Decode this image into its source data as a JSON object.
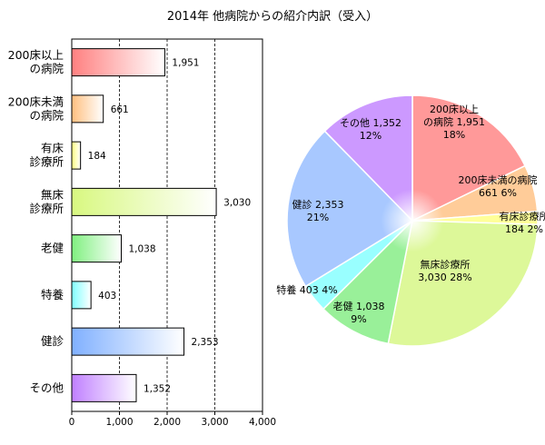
{
  "chart_data": [
    {
      "type": "bar",
      "orientation": "horizontal",
      "title": "2014年 他病院からの紹介内訳（受入）",
      "categories": [
        [
          "200床以上",
          "の病院"
        ],
        [
          "200床未満",
          "の病院"
        ],
        [
          "有床",
          "診療所"
        ],
        [
          "無床",
          "診療所"
        ],
        [
          "老健"
        ],
        [
          "特養"
        ],
        [
          "健診"
        ],
        [
          "その他"
        ]
      ],
      "values": [
        1951,
        661,
        184,
        3030,
        1038,
        403,
        2353,
        1352
      ],
      "value_labels": [
        "1,951",
        "661",
        "184",
        "3,030",
        "1,038",
        "403",
        "2,353",
        "1,352"
      ],
      "xlim": [
        0,
        4000
      ],
      "xticks": [
        0,
        1000,
        2000,
        3000,
        4000
      ],
      "xtick_labels": [
        "0",
        "1,000",
        "2,000",
        "3,000",
        "4,000"
      ],
      "grid": true,
      "colors": [
        "#ff8080",
        "#ffc080",
        "#ffff80",
        "#d8f880",
        "#80f080",
        "#80ffff",
        "#80b0ff",
        "#c080ff"
      ]
    },
    {
      "type": "pie",
      "slices": [
        {
          "label": "200床以上の病院",
          "value": 1951,
          "value_label": "1,951",
          "percent": "18%",
          "color": "#ff9999"
        },
        {
          "label": "200床未満の病院",
          "value": 661,
          "value_label": "661",
          "percent": "6%",
          "color": "#ffcc99"
        },
        {
          "label": "有床診療所",
          "value": 184,
          "value_label": "184",
          "percent": "2%",
          "color": "#ffff99"
        },
        {
          "label": "無床診療所",
          "value": 3030,
          "value_label": "3,030",
          "percent": "28%",
          "color": "#ddf899"
        },
        {
          "label": "老健",
          "value": 1038,
          "value_label": "1,038",
          "percent": "9%",
          "color": "#99f099"
        },
        {
          "label": "特養",
          "value": 403,
          "value_label": "403",
          "percent": "4%",
          "color": "#99ffff"
        },
        {
          "label": "健診",
          "value": 2353,
          "value_label": "2,353",
          "percent": "21%",
          "color": "#a8c8ff"
        },
        {
          "label": "その他",
          "value": 1352,
          "value_label": "1,352",
          "percent": "12%",
          "color": "#cc99ff"
        }
      ]
    }
  ]
}
